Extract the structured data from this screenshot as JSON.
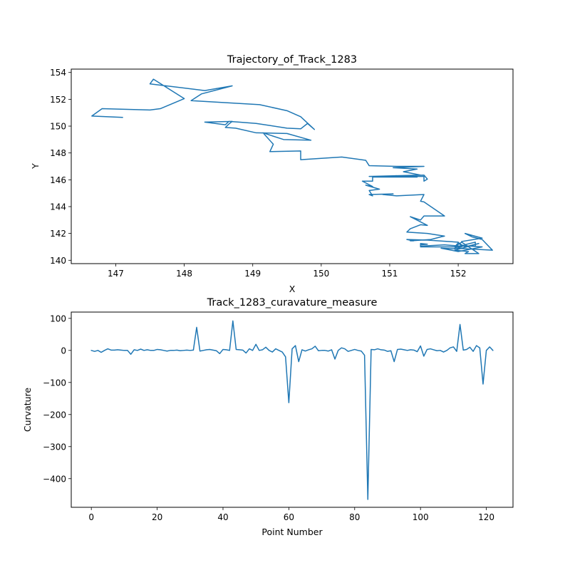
{
  "colors": {
    "series": "#1f77b4",
    "background": "#ffffff",
    "axes": "#000000"
  },
  "chart_data": [
    {
      "type": "line",
      "title": "Trajectory_of_Track_1283",
      "xlabel": "X",
      "ylabel": "Y",
      "xlim": [
        146.35,
        152.8
      ],
      "ylim": [
        139.75,
        154.25
      ],
      "xticks": [
        147,
        148,
        149,
        150,
        151,
        152
      ],
      "xtick_labels": [
        "147",
        "148",
        "149",
        "150",
        "151",
        "152"
      ],
      "yticks": [
        140,
        142,
        144,
        146,
        148,
        150,
        152,
        154
      ],
      "ytick_labels": [
        "140",
        "142",
        "144",
        "146",
        "148",
        "150",
        "152",
        "154"
      ],
      "grid": false,
      "series": [
        {
          "x": [
            147.1,
            146.65,
            146.8,
            147.5,
            147.65,
            148.0,
            147.55,
            147.5,
            148.3,
            148.7,
            148.25,
            148.1,
            149.1,
            149.5,
            149.7,
            149.9,
            149.8,
            149.7,
            149.5,
            149.05,
            148.8,
            148.65,
            148.6,
            148.3,
            148.7,
            148.65,
            148.6,
            148.75,
            149.05,
            149.5,
            149.85,
            149.45,
            149.15,
            149.3,
            149.25,
            149.7,
            149.7,
            150.3,
            150.65,
            150.7,
            151.1,
            151.5,
            151.05,
            151.4,
            151.2,
            151.45,
            150.7,
            151.1,
            150.75,
            151.4,
            151.35,
            151.05,
            151.5,
            151.5,
            151.55,
            151.5,
            150.75,
            150.75,
            150.6,
            150.75,
            150.65,
            150.85,
            150.7,
            150.75,
            150.7,
            151.05,
            150.9,
            151.1,
            151.5,
            151.45,
            151.5,
            151.8,
            151.5,
            151.45,
            151.3,
            151.55,
            151.55,
            151.45,
            151.3,
            151.25,
            151.55,
            151.8,
            151.75,
            151.6,
            151.3,
            151.35,
            151.25,
            151.55,
            152.0,
            152.05,
            151.8,
            151.45,
            151.45,
            151.55,
            151.45,
            151.45,
            152.05,
            151.95,
            151.75,
            151.9,
            152.0,
            152.35,
            152.05,
            152.25,
            152.25,
            152.0,
            151.95,
            152.5,
            152.35,
            152.2,
            152.1,
            152.35,
            152.05,
            152.05,
            151.95,
            152.0,
            152.1,
            152.3,
            151.95,
            152.15,
            152.1,
            152.3,
            152.05
          ],
          "y": [
            150.65,
            150.75,
            151.3,
            151.2,
            151.3,
            152.05,
            153.5,
            153.15,
            152.65,
            153.0,
            152.4,
            151.9,
            151.6,
            151.15,
            150.7,
            149.75,
            150.2,
            149.8,
            149.85,
            150.2,
            150.3,
            150.35,
            150.1,
            150.3,
            150.35,
            150.15,
            149.9,
            149.85,
            149.5,
            149.45,
            148.95,
            149.0,
            149.5,
            148.65,
            148.1,
            148.15,
            147.5,
            147.7,
            147.45,
            147.05,
            147.0,
            147.0,
            146.9,
            146.8,
            146.6,
            146.35,
            146.25,
            146.3,
            146.2,
            146.2,
            146.3,
            146.25,
            146.25,
            145.9,
            146.05,
            146.35,
            146.25,
            145.9,
            145.9,
            145.5,
            145.6,
            145.3,
            145.2,
            144.8,
            144.9,
            144.95,
            144.9,
            144.8,
            144.9,
            144.4,
            144.35,
            143.3,
            143.3,
            143.0,
            143.25,
            142.6,
            142.6,
            142.65,
            142.35,
            142.1,
            142.0,
            141.8,
            141.75,
            141.55,
            141.45,
            141.45,
            141.55,
            141.5,
            141.35,
            141.05,
            141.15,
            141.05,
            141.25,
            141.2,
            141.15,
            141.0,
            141.0,
            140.85,
            140.9,
            140.75,
            140.65,
            141.0,
            141.1,
            141.35,
            141.05,
            141.05,
            140.9,
            140.75,
            141.55,
            141.75,
            142.0,
            141.65,
            141.4,
            141.35,
            141.0,
            141.3,
            141.0,
            141.25,
            140.75,
            140.65,
            140.5,
            140.5,
            141.35
          ]
        }
      ]
    },
    {
      "type": "line",
      "title": "Track_1283_curavature_measure",
      "xlabel": "Point Number",
      "ylabel": "Curvature",
      "xlim": [
        -6.1,
        128.1
      ],
      "ylim": [
        -489.4,
        119.6
      ],
      "xticks": [
        0,
        20,
        40,
        60,
        80,
        100,
        120
      ],
      "xtick_labels": [
        "0",
        "20",
        "40",
        "60",
        "80",
        "100",
        "120"
      ],
      "yticks": [
        100,
        0,
        -100,
        -200,
        -300,
        -400
      ],
      "ytick_labels": [
        "100",
        "0",
        "−100",
        "−200",
        "−300",
        "−400"
      ],
      "grid": false,
      "series": [
        {
          "x": [
            0,
            1,
            2,
            3,
            4,
            5,
            6,
            7,
            8,
            9,
            10,
            11,
            12,
            13,
            14,
            15,
            16,
            17,
            18,
            19,
            20,
            21,
            22,
            23,
            24,
            25,
            26,
            27,
            28,
            29,
            30,
            31,
            32,
            33,
            34,
            35,
            36,
            37,
            38,
            39,
            40,
            41,
            42,
            43,
            44,
            45,
            46,
            47,
            48,
            49,
            50,
            51,
            52,
            53,
            54,
            55,
            56,
            57,
            58,
            59,
            60,
            61,
            62,
            63,
            64,
            65,
            66,
            67,
            68,
            69,
            70,
            71,
            72,
            73,
            74,
            75,
            76,
            77,
            78,
            79,
            80,
            81,
            82,
            83,
            84,
            85,
            86,
            87,
            88,
            89,
            90,
            91,
            92,
            93,
            94,
            95,
            96,
            97,
            98,
            99,
            100,
            101,
            102,
            103,
            104,
            105,
            106,
            107,
            108,
            109,
            110,
            111,
            112,
            113,
            114,
            115,
            116,
            117,
            118,
            119,
            120,
            121,
            122
          ],
          "y": [
            0,
            -3,
            0,
            -6,
            0,
            5,
            1,
            1,
            2,
            1,
            0,
            0,
            -12,
            2,
            0,
            4,
            0,
            2,
            0,
            0,
            3,
            2,
            0,
            -2,
            0,
            0,
            1,
            -1,
            0,
            1,
            0,
            1,
            72,
            -2,
            0,
            2,
            3,
            1,
            -1,
            -10,
            3,
            2,
            0,
            92,
            3,
            2,
            1,
            -8,
            5,
            0,
            19,
            0,
            2,
            10,
            0,
            -5,
            5,
            0,
            -5,
            -20,
            -163,
            5,
            15,
            -35,
            2,
            -2,
            2,
            5,
            13,
            -1,
            0,
            0,
            -2,
            2,
            -27,
            0,
            8,
            5,
            -3,
            0,
            3,
            0,
            -2,
            -15,
            -465,
            3,
            2,
            5,
            2,
            1,
            -3,
            -1,
            -35,
            3,
            4,
            2,
            0,
            2,
            1,
            -4,
            14,
            -18,
            3,
            5,
            2,
            -1,
            0,
            -5,
            0,
            8,
            11,
            -3,
            81,
            1,
            3,
            10,
            -3,
            15,
            8,
            -105,
            0,
            11,
            0
          ]
        }
      ]
    }
  ]
}
